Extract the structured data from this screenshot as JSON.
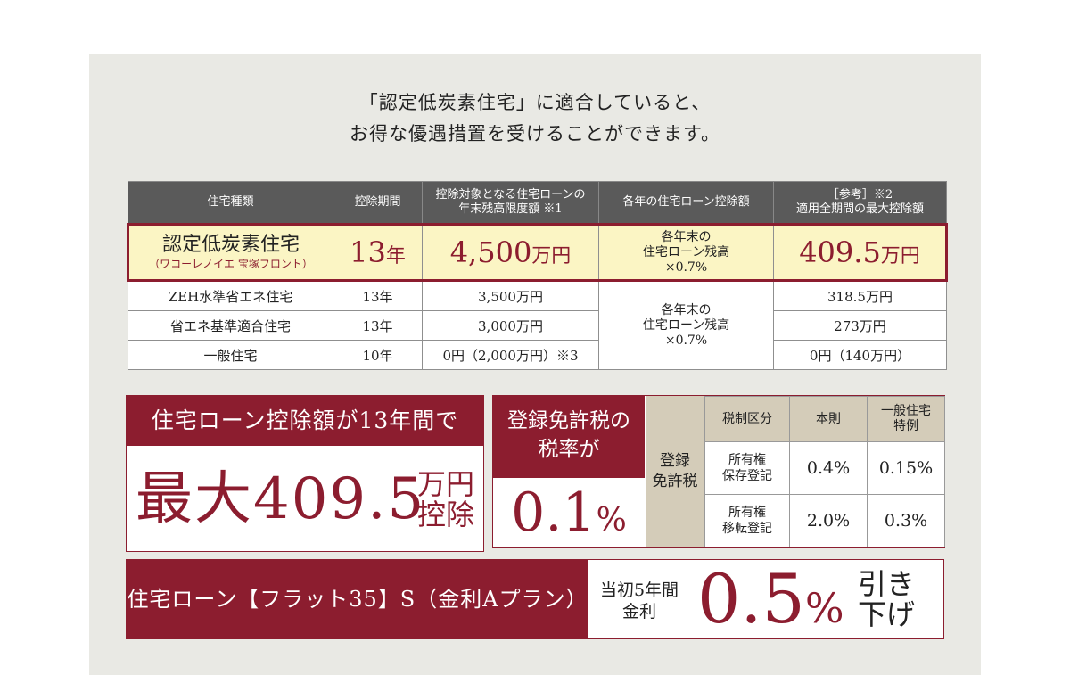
{
  "intro": {
    "line1": "「認定低炭素住宅」に適合していると、",
    "line2": "お得な優遇措置を受けることができます。"
  },
  "table": {
    "headers": {
      "type": "住宅種類",
      "period": "控除期間",
      "limit_1": "控除対象となる住宅ローンの",
      "limit_2": "年末残高限度額 ※1",
      "annual": "各年の住宅ローン控除額",
      "ref_1": "［参考］※2",
      "ref_2": "適用全期間の最大控除額"
    },
    "highlight": {
      "name": "認定低炭素住宅",
      "sub": "（ワコーレノイエ 宝塚フロント）",
      "period_num": "13",
      "period_unit": "年",
      "limit_num": "4,500",
      "limit_unit": "万円",
      "annual_1": "各年末の",
      "annual_2": "住宅ローン残高",
      "annual_3": "×0.7%",
      "max_num": "409.5",
      "max_unit": "万円"
    },
    "rows": [
      {
        "type": "ZEH水準省エネ住宅",
        "period": "13年",
        "limit": "3,500万円",
        "max": "318.5万円"
      },
      {
        "type": "省エネ基準適合住宅",
        "period": "13年",
        "limit": "3,000万円",
        "max": "273万円"
      },
      {
        "type": "一般住宅",
        "period": "10年",
        "limit": "0円（2,000万円）※3",
        "max": "0円（140万円）"
      }
    ],
    "merged_annual": {
      "l1": "各年末の",
      "l2": "住宅ローン残高",
      "l3": "×0.7%"
    }
  },
  "loan": {
    "heading": "住宅ローン控除額が13年間で",
    "big": "最大409.5",
    "unit_1": "万円",
    "unit_2": "控除"
  },
  "tax": {
    "heading_1": "登録免許税の",
    "heading_2": "税率が",
    "rate_num": "0.1",
    "rate_unit": "%",
    "side_1": "登録",
    "side_2": "免許税",
    "col_category": "税制区分",
    "col_main": "本則",
    "col_special_1": "一般住宅",
    "col_special_2": "特例",
    "rows": [
      {
        "label_1": "所有権",
        "label_2": "保存登記",
        "main": "0.4%",
        "special": "0.15%"
      },
      {
        "label_1": "所有権",
        "label_2": "移転登記",
        "main": "2.0%",
        "special": "0.3%"
      }
    ]
  },
  "flat35": {
    "heading": "住宅ローン【フラット35】S（金利Aプラン）",
    "label_1": "当初5年間",
    "label_2": "金利",
    "rate_num": "0.5",
    "rate_unit": "%",
    "cut_1": "引き",
    "cut_2": "下げ"
  },
  "colors": {
    "accent": "#8c1d2f",
    "highlight_bg": "#fbf5c4",
    "header_bg": "#5a5a5a",
    "tan": "#d4ccb9",
    "panel": "#e9e9e4"
  }
}
